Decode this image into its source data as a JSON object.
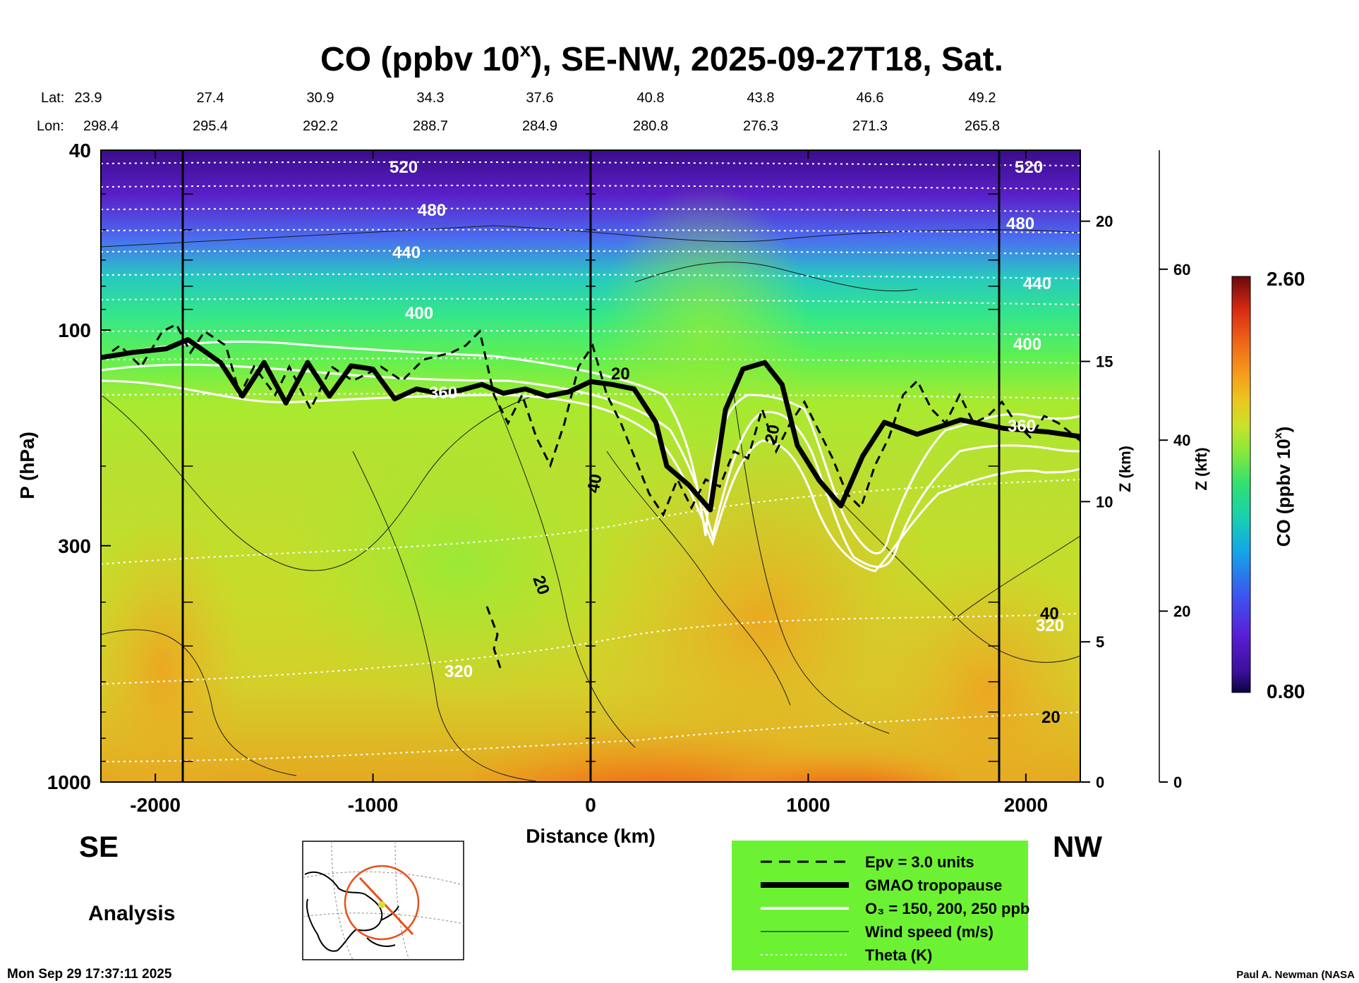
{
  "title": "CO (ppbv 10",
  "title_sup": "x",
  "title_rest": "), SE-NW, 2025-09-27T18, Sat.",
  "lat_label": "Lat:",
  "lon_label": "Lon:",
  "lat_values": [
    "23.9",
    "27.4",
    "30.9",
    "34.3",
    "37.6",
    "40.8",
    "43.8",
    "46.6",
    "49.2"
  ],
  "lon_values": [
    "298.4",
    "295.4",
    "292.2",
    "288.7",
    "284.9",
    "280.8",
    "276.3",
    "271.3",
    "265.8"
  ],
  "left_label": "SE",
  "right_label": "NW",
  "analysis_label": "Analysis",
  "timestamp": "Mon Sep 29 17:37:11 2025",
  "credit": "Paul A. Newman (NASA",
  "legend": [
    {
      "style": "dashed",
      "label": "Epv = 3.0 units"
    },
    {
      "style": "thick",
      "label": "GMAO tropopause"
    },
    {
      "style": "white",
      "label": "O₃ = 150, 200, 250 ppb"
    },
    {
      "style": "thin",
      "label": "Wind speed (m/s)"
    },
    {
      "style": "dotted",
      "label": "Theta (K)"
    }
  ],
  "colorbar": {
    "min": "0.80",
    "max": "2.60",
    "label": "CO (ppbv 10",
    "label_sup": "x",
    "label_end": ")"
  },
  "chart_data": {
    "type": "heatmap",
    "xlabel": "Distance (km)",
    "ylabel": "P (hPa)",
    "xlim": [
      -2250,
      2250
    ],
    "ylim": [
      1000,
      40
    ],
    "yscale": "log",
    "xticks": [
      -2000,
      -1000,
      0,
      1000,
      2000
    ],
    "yticks": [
      40,
      100,
      300,
      1000
    ],
    "z_km_label": "Z (km)",
    "z_km_ticks": [
      0,
      5,
      10,
      15,
      20
    ],
    "z_kft_label": "Z (kft)",
    "z_kft_ticks": [
      0,
      20,
      40,
      60
    ],
    "vertical_markers_km": [
      -1850,
      0,
      1850
    ],
    "theta_levels": [
      {
        "value": 520,
        "p": 47
      },
      {
        "value": 480,
        "p": 57
      },
      {
        "value": 440,
        "p": 70
      },
      {
        "value": 400,
        "p": 93
      },
      {
        "value": 360,
        "p": 135
      },
      {
        "value": 320,
        "p": 560
      }
    ],
    "contour_labels": [
      "520",
      "480",
      "440",
      "400",
      "360",
      "320",
      "20",
      "40"
    ],
    "tropopause_p": [
      [
        -2250,
        115
      ],
      [
        -2100,
        112
      ],
      [
        -1950,
        110
      ],
      [
        -1850,
        105
      ],
      [
        -1700,
        118
      ],
      [
        -1600,
        140
      ],
      [
        -1500,
        118
      ],
      [
        -1400,
        145
      ],
      [
        -1300,
        118
      ],
      [
        -1200,
        140
      ],
      [
        -1100,
        120
      ],
      [
        -1000,
        122
      ],
      [
        -900,
        142
      ],
      [
        -800,
        135
      ],
      [
        -700,
        138
      ],
      [
        -600,
        136
      ],
      [
        -500,
        132
      ],
      [
        -400,
        138
      ],
      [
        -300,
        135
      ],
      [
        -200,
        140
      ],
      [
        -100,
        137
      ],
      [
        0,
        130
      ],
      [
        100,
        132
      ],
      [
        200,
        135
      ],
      [
        300,
        160
      ],
      [
        350,
        200
      ],
      [
        450,
        220
      ],
      [
        550,
        250
      ],
      [
        620,
        150
      ],
      [
        700,
        122
      ],
      [
        800,
        118
      ],
      [
        880,
        132
      ],
      [
        950,
        180
      ],
      [
        1050,
        215
      ],
      [
        1150,
        245
      ],
      [
        1250,
        190
      ],
      [
        1350,
        160
      ],
      [
        1500,
        170
      ],
      [
        1700,
        158
      ],
      [
        1900,
        165
      ],
      [
        2100,
        168
      ],
      [
        2250,
        172
      ]
    ],
    "co_range": [
      0.8,
      2.6
    ]
  }
}
